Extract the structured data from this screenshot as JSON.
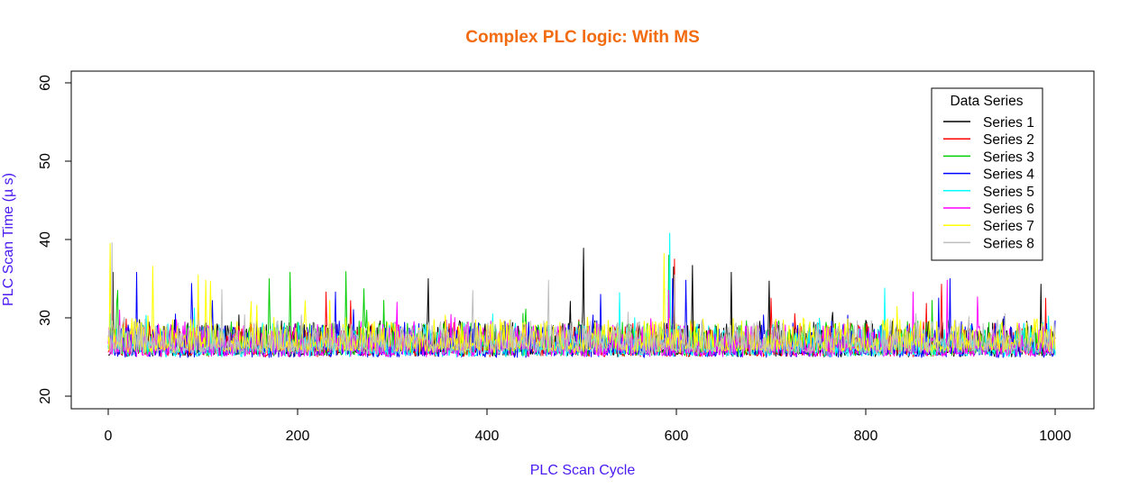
{
  "chart_data": {
    "type": "line",
    "title": "Complex PLC logic: With MS",
    "xlabel": "PLC Scan Cycle",
    "ylabel": "PLC Scan Time (µ s)",
    "xlim": [
      0,
      1000
    ],
    "ylim": [
      20,
      60
    ],
    "x_ticks": [
      "0",
      "200",
      "400",
      "600",
      "800",
      "1000"
    ],
    "y_ticks": [
      "20",
      "30",
      "40",
      "50",
      "60"
    ],
    "grid": false,
    "legend": {
      "title": "Data Series",
      "placement": "top-right"
    },
    "colors": {
      "title": "#f26b0f",
      "axis_label": "#4b1bf2"
    },
    "series": [
      {
        "name": "Series 1",
        "color": "#000000",
        "baseline": 25.3,
        "spread": 4.2,
        "peaks": [
          [
            5,
            35.8
          ],
          [
            338,
            35.0
          ],
          [
            502,
            38.9
          ],
          [
            597,
            36.5
          ],
          [
            617,
            36.7
          ],
          [
            658,
            35.8
          ],
          [
            698,
            34.7
          ],
          [
            985,
            34.3
          ]
        ]
      },
      {
        "name": "Series 2",
        "color": "#ff0000",
        "baseline": 25.3,
        "spread": 4.0,
        "peaks": [
          [
            4,
            33.0
          ],
          [
            230,
            33.3
          ],
          [
            598,
            37.5
          ],
          [
            700,
            32.5
          ],
          [
            880,
            34.3
          ],
          [
            990,
            32.5
          ]
        ]
      },
      {
        "name": "Series 3",
        "color": "#00cd00",
        "baseline": 25.4,
        "spread": 4.0,
        "peaks": [
          [
            10,
            33.5
          ],
          [
            170,
            35.0
          ],
          [
            192,
            35.8
          ],
          [
            251,
            35.9
          ],
          [
            270,
            33.7
          ],
          [
            592,
            38.0
          ]
        ]
      },
      {
        "name": "Series 4",
        "color": "#0000ff",
        "baseline": 25.2,
        "spread": 4.2,
        "peaks": [
          [
            30,
            35.8
          ],
          [
            88,
            34.4
          ],
          [
            240,
            33.3
          ],
          [
            520,
            33.0
          ],
          [
            596,
            35.0
          ],
          [
            610,
            34.8
          ],
          [
            889,
            35.0
          ]
        ]
      },
      {
        "name": "Series 5",
        "color": "#00ffff",
        "baseline": 25.3,
        "spread": 3.9,
        "peaks": [
          [
            2,
            30.5
          ],
          [
            540,
            33.2
          ],
          [
            593,
            40.8
          ],
          [
            820,
            33.8
          ]
        ]
      },
      {
        "name": "Series 6",
        "color": "#ff00ff",
        "baseline": 25.3,
        "spread": 4.0,
        "peaks": [
          [
            12,
            31.0
          ],
          [
            95,
            32.8
          ],
          [
            305,
            32.0
          ],
          [
            592,
            33.5
          ],
          [
            850,
            33.3
          ],
          [
            886,
            34.8
          ]
        ]
      },
      {
        "name": "Series 7",
        "color": "#ffff00",
        "baseline": 25.8,
        "spread": 4.0,
        "peaks": [
          [
            2,
            39.5
          ],
          [
            47,
            36.6
          ],
          [
            95,
            35.5
          ],
          [
            103,
            34.8
          ],
          [
            108,
            34.7
          ],
          [
            587,
            38.2
          ]
        ]
      },
      {
        "name": "Series 8",
        "color": "#bebebe",
        "baseline": 25.6,
        "spread": 4.0,
        "peaks": [
          [
            4,
            39.6
          ],
          [
            120,
            33.6
          ],
          [
            385,
            33.5
          ],
          [
            465,
            34.8
          ],
          [
            598,
            35.5
          ]
        ]
      }
    ]
  }
}
